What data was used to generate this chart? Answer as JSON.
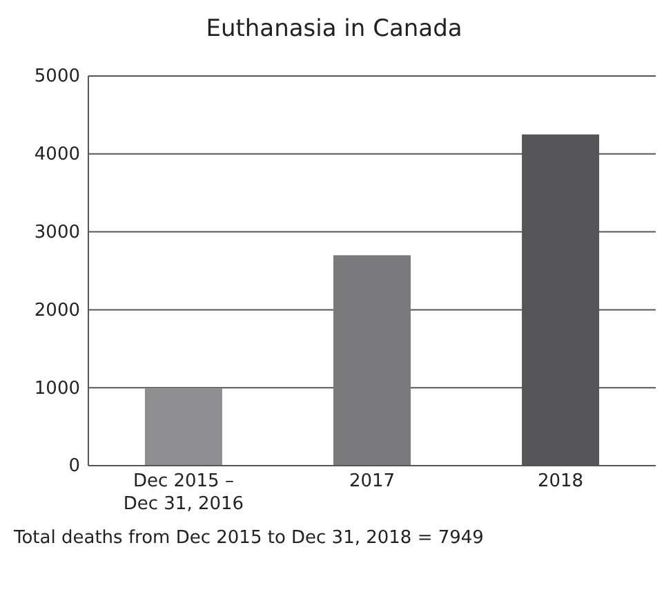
{
  "chart_data": {
    "type": "bar",
    "title": "Euthanasia in Canada",
    "categories": [
      "Dec 2015 – Dec 31, 2016",
      "2017",
      "2018"
    ],
    "values": [
      990,
      2700,
      4250
    ],
    "colors": [
      "#8e8e90",
      "#7a7a7c",
      "#555557"
    ],
    "ylim": [
      0,
      5000
    ],
    "yticks": [
      0,
      1000,
      2000,
      3000,
      4000,
      5000
    ],
    "grid": "y",
    "annotations": [
      "Total deaths from Dec 2015 to Dec 31, 2018 = 7949"
    ]
  }
}
